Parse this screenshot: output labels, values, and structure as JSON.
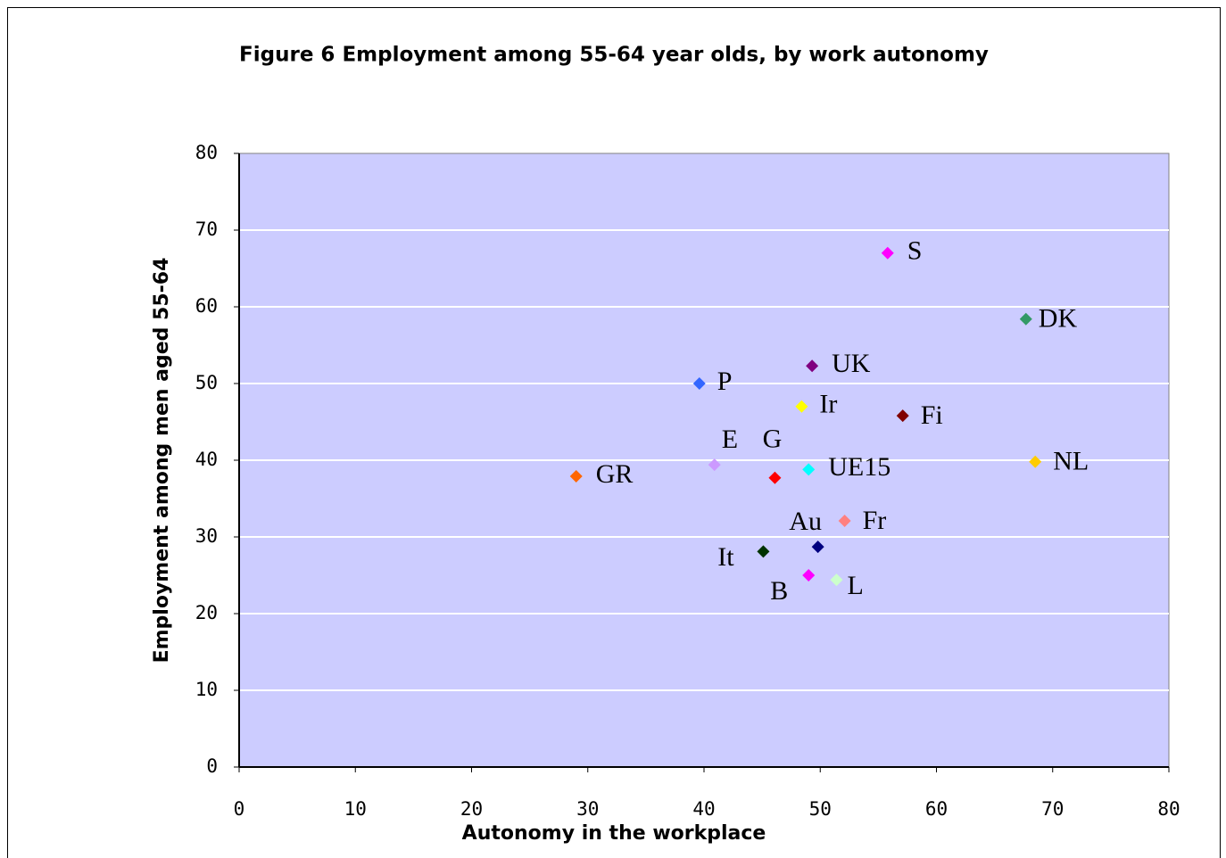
{
  "chart_data": {
    "type": "scatter",
    "title": "Figure 6  Employment among 55-64 year olds, by work autonomy",
    "x_label": "Autonomy in the workplace",
    "y_label": "Employment among men aged 55-64",
    "xlim": [
      0,
      80
    ],
    "xticks": [
      0,
      10,
      20,
      30,
      40,
      50,
      60,
      70,
      80
    ],
    "ylim": [
      0,
      80
    ],
    "yticks": [
      0,
      10,
      20,
      30,
      40,
      50,
      60,
      70,
      80
    ],
    "grid": true,
    "series": [
      {
        "name": "S",
        "color": "#ff00ff",
        "x": [
          55.8
        ],
        "values": [
          67.0
        ]
      },
      {
        "name": "DK",
        "color": "#339966",
        "x": [
          67.7
        ],
        "values": [
          58.4
        ]
      },
      {
        "name": "UK",
        "color": "#800080",
        "x": [
          49.3
        ],
        "values": [
          52.3
        ]
      },
      {
        "name": "P",
        "color": "#3366ff",
        "x": [
          39.6
        ],
        "values": [
          50.0
        ]
      },
      {
        "name": "Ir",
        "color": "#ffff00",
        "x": [
          48.4
        ],
        "values": [
          47.0
        ]
      },
      {
        "name": "Fi",
        "color": "#800000",
        "x": [
          57.1
        ],
        "values": [
          45.8
        ]
      },
      {
        "name": "E",
        "color": "#cc99ff",
        "x": [
          40.9
        ],
        "values": [
          39.4
        ]
      },
      {
        "name": "G",
        "color": "#ff0000",
        "x": [
          46.1
        ],
        "values": [
          37.7
        ]
      },
      {
        "name": "UE15",
        "color": "#00ffff",
        "x": [
          49.0
        ],
        "values": [
          38.8
        ]
      },
      {
        "name": "GR",
        "color": "#ff6600",
        "x": [
          29.0
        ],
        "values": [
          37.9
        ]
      },
      {
        "name": "NL",
        "color": "#ffcc00",
        "x": [
          68.5
        ],
        "values": [
          39.8
        ]
      },
      {
        "name": "Fr",
        "color": "#ff8080",
        "x": [
          52.1
        ],
        "values": [
          32.1
        ]
      },
      {
        "name": "Au",
        "color": "#000080",
        "x": [
          49.8
        ],
        "values": [
          28.7
        ]
      },
      {
        "name": "It",
        "color": "#003300",
        "x": [
          45.1
        ],
        "values": [
          28.1
        ]
      },
      {
        "name": "B",
        "color": "#ff00ff",
        "x": [
          49.0
        ],
        "values": [
          25.0
        ]
      },
      {
        "name": "L",
        "color": "#ccffcc",
        "x": [
          51.4
        ],
        "values": [
          24.4
        ]
      }
    ]
  }
}
